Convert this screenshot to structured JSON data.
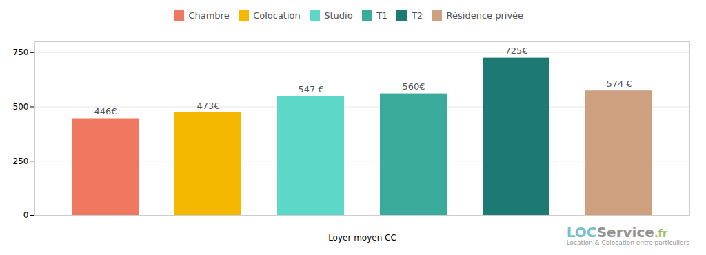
{
  "chart_data": {
    "type": "bar",
    "categories": [
      "Chambre",
      "Colocation",
      "Studio",
      "T1",
      "T2",
      "Résidence privée"
    ],
    "values": [
      446,
      473,
      547,
      560,
      725,
      574
    ],
    "value_labels": [
      "446€",
      "473€",
      "547 €",
      "560€",
      "725€",
      "574 €"
    ],
    "colors": [
      "#F07860",
      "#F5B800",
      "#5DD8C8",
      "#3AAA9A",
      "#1D7A72",
      "#CFA080"
    ],
    "xlabel": "Loyer moyen CC",
    "ylim": [
      0,
      800
    ],
    "yticks": [
      0,
      250,
      500,
      750
    ],
    "grid": true,
    "legend": "top",
    "data_labels": true,
    "tick_labels": "y",
    "annotations": [
      "LOC",
      "Service",
      ".fr",
      "Location & Colocation entre particuliers"
    ]
  }
}
